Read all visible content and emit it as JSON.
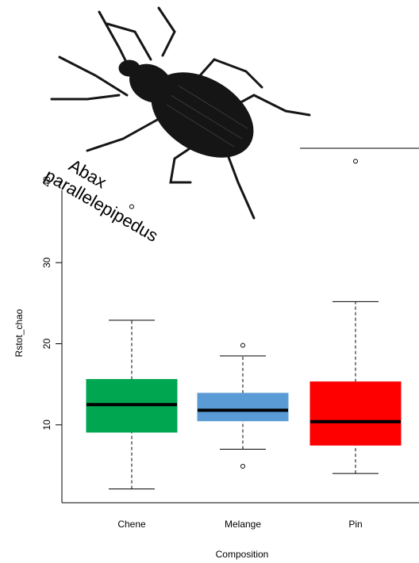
{
  "chart_data": {
    "type": "boxplot",
    "annotation": [
      "Abax",
      "parallelepipedus"
    ],
    "x_label": "Composition",
    "y_label": "Rstot_chao",
    "categories": [
      "Chene",
      "Melange",
      "Pin"
    ],
    "colors": [
      "#00a650",
      "#5b9bd5",
      "#ff0000"
    ],
    "boxes": [
      {
        "low": 2.1,
        "q1": 9.1,
        "median": 12.5,
        "q3": 15.6,
        "high": 22.9,
        "outliers": [
          36.9
        ]
      },
      {
        "low": 7.0,
        "q1": 10.5,
        "median": 11.8,
        "q3": 13.9,
        "high": 18.5,
        "outliers": [
          19.8,
          4.9
        ]
      },
      {
        "low": 4.0,
        "q1": 7.5,
        "median": 10.4,
        "q3": 15.3,
        "high": 25.2,
        "outliers": [
          42.5
        ]
      }
    ],
    "ylim": [
      0.4,
      44.1
    ],
    "yticks": [
      10,
      20,
      30,
      40
    ]
  }
}
